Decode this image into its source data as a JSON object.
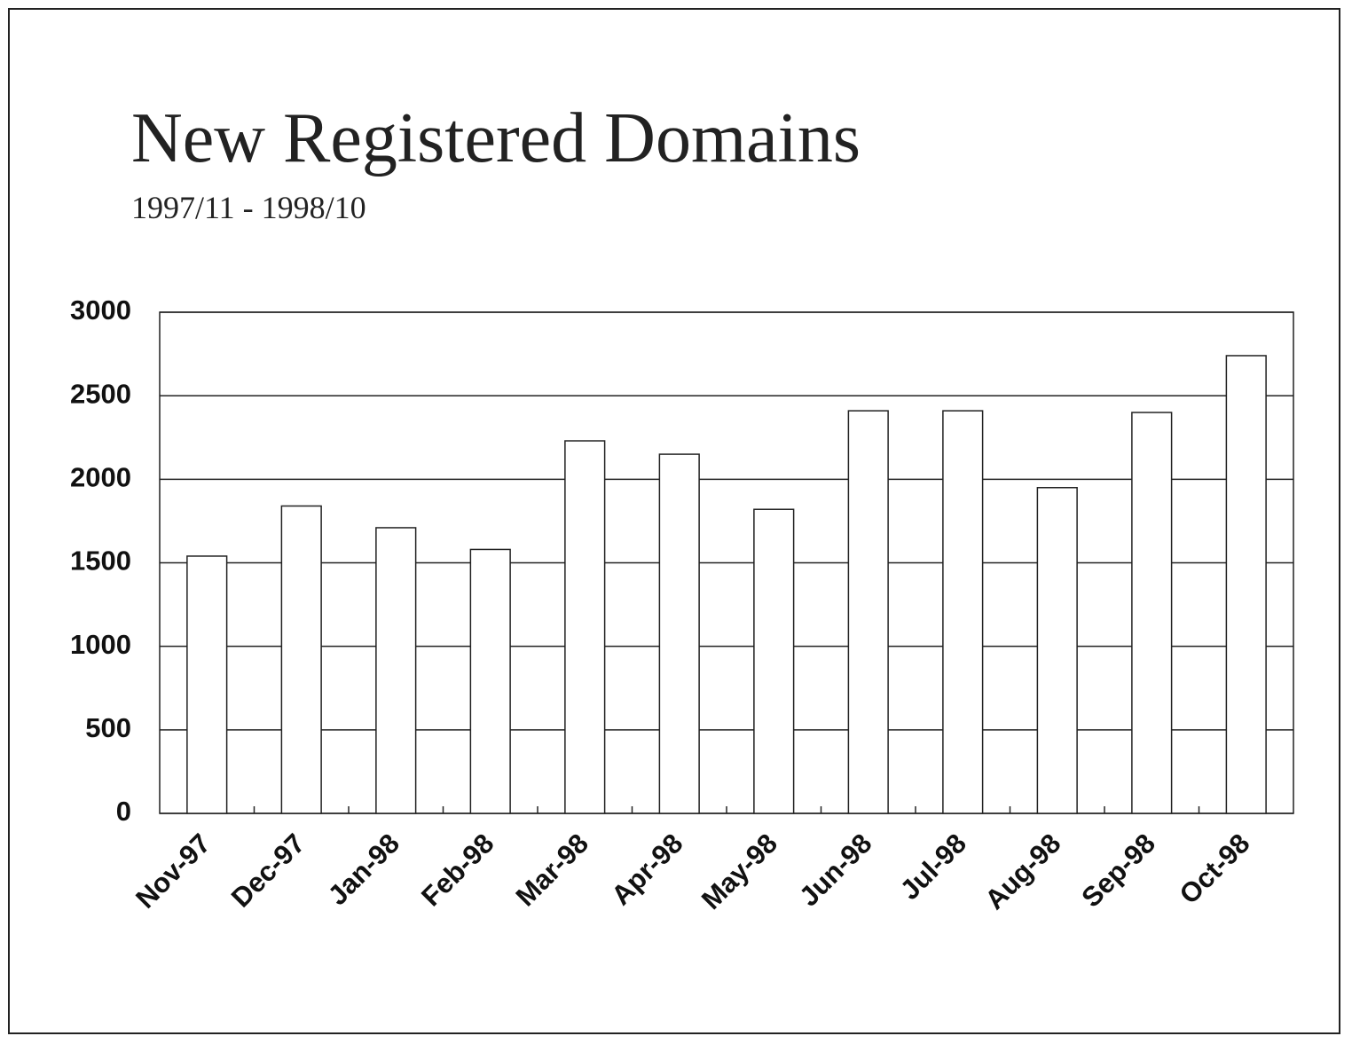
{
  "chart_data": {
    "type": "bar",
    "title": "New Registered Domains",
    "subtitle": "1997/11 - 1998/10",
    "categories": [
      "Nov-97",
      "Dec-97",
      "Jan-98",
      "Feb-98",
      "Mar-98",
      "Apr-98",
      "May-98",
      "Jun-98",
      "Jul-98",
      "Aug-98",
      "Sep-98",
      "Oct-98"
    ],
    "values": [
      1540,
      1840,
      1710,
      1580,
      2230,
      2150,
      1820,
      2410,
      2410,
      1950,
      2400,
      2740
    ],
    "color": "#ffffff",
    "ylim": [
      0,
      3000
    ],
    "yticks": [
      0,
      500,
      1000,
      1500,
      2000,
      2500,
      3000
    ],
    "grid": true
  }
}
